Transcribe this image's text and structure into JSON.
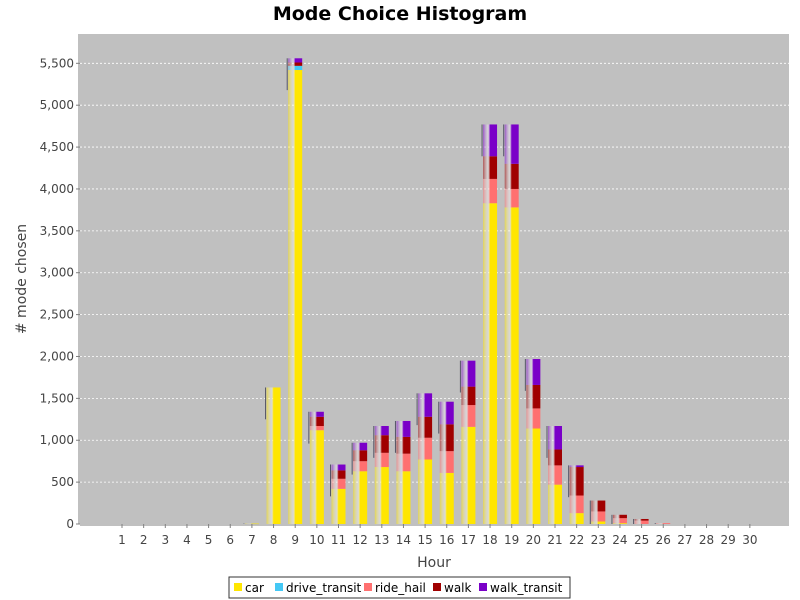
{
  "chart_data": {
    "type": "bar",
    "stacked": true,
    "title": "Mode Choice Histogram",
    "xlabel": "Hour",
    "ylabel": "# mode chosen",
    "categories": [
      "1",
      "2",
      "3",
      "4",
      "5",
      "6",
      "7",
      "8",
      "9",
      "10",
      "11",
      "12",
      "13",
      "14",
      "15",
      "16",
      "17",
      "18",
      "19",
      "20",
      "21",
      "22",
      "23",
      "24",
      "25",
      "26",
      "27",
      "28",
      "29",
      "30"
    ],
    "ylim": [
      0,
      5850
    ],
    "yticks": [
      0,
      500,
      1000,
      1500,
      2000,
      2500,
      3000,
      3500,
      4000,
      4500,
      5000,
      5500
    ],
    "ytick_labels": [
      "0",
      "500",
      "1,000",
      "1,500",
      "2,000",
      "2,500",
      "3,000",
      "3,500",
      "4,000",
      "4,500",
      "5,000",
      "5,500"
    ],
    "grid": true,
    "legend_position": "bottom",
    "background": "#c0c0c0",
    "series": [
      {
        "name": "car",
        "color": "#ffe600",
        "values": [
          0,
          0,
          0,
          0,
          0,
          0,
          5,
          1630,
          5420,
          1120,
          420,
          630,
          680,
          630,
          770,
          610,
          1160,
          3830,
          3780,
          1140,
          470,
          130,
          30,
          10,
          0,
          0,
          0,
          0,
          0,
          0
        ]
      },
      {
        "name": "drive_transit",
        "color": "#44c8f5",
        "values": [
          0,
          0,
          0,
          0,
          0,
          0,
          0,
          0,
          50,
          0,
          0,
          0,
          0,
          0,
          0,
          0,
          0,
          0,
          0,
          0,
          0,
          0,
          0,
          0,
          0,
          0,
          0,
          0,
          0,
          0
        ]
      },
      {
        "name": "ride_hail",
        "color": "#ff7070",
        "values": [
          0,
          0,
          0,
          0,
          0,
          0,
          0,
          0,
          0,
          50,
          120,
          120,
          170,
          210,
          260,
          260,
          260,
          290,
          220,
          240,
          230,
          210,
          120,
          60,
          40,
          10,
          0,
          0,
          0,
          0
        ]
      },
      {
        "name": "walk",
        "color": "#a00000",
        "values": [
          0,
          0,
          0,
          0,
          0,
          0,
          0,
          0,
          40,
          110,
          100,
          130,
          210,
          200,
          250,
          320,
          220,
          270,
          300,
          280,
          190,
          340,
          130,
          40,
          20,
          0,
          0,
          0,
          0,
          0
        ]
      },
      {
        "name": "walk_transit",
        "color": "#7a00c8",
        "values": [
          0,
          0,
          0,
          0,
          0,
          0,
          0,
          0,
          50,
          60,
          70,
          90,
          110,
          190,
          280,
          270,
          310,
          380,
          470,
          310,
          280,
          20,
          0,
          0,
          0,
          0,
          0,
          0,
          0,
          0
        ]
      }
    ]
  }
}
